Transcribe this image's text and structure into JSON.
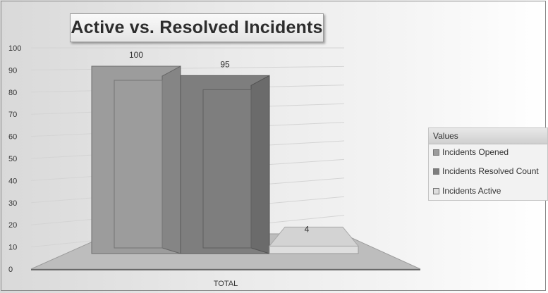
{
  "chart_data": {
    "type": "bar",
    "title": "Active vs. Resolved Incidents",
    "categories": [
      "TOTAL"
    ],
    "series": [
      {
        "name": "Incidents Opened",
        "values": [
          100
        ],
        "color": "#9c9c9c"
      },
      {
        "name": "Incidents Resolved Count",
        "values": [
          95
        ],
        "color": "#7e7e7e"
      },
      {
        "name": "Incidents Active",
        "values": [
          4
        ],
        "color": "#dedede"
      }
    ],
    "data_labels": [
      "100",
      "95",
      "4"
    ],
    "ylim": [
      0,
      100
    ],
    "yticks": [
      "0",
      "10",
      "20",
      "30",
      "40",
      "50",
      "60",
      "70",
      "80",
      "90",
      "100"
    ],
    "xlabel": "",
    "ylabel": "",
    "grid": true,
    "legend": {
      "title": "Values",
      "position": "right"
    }
  }
}
